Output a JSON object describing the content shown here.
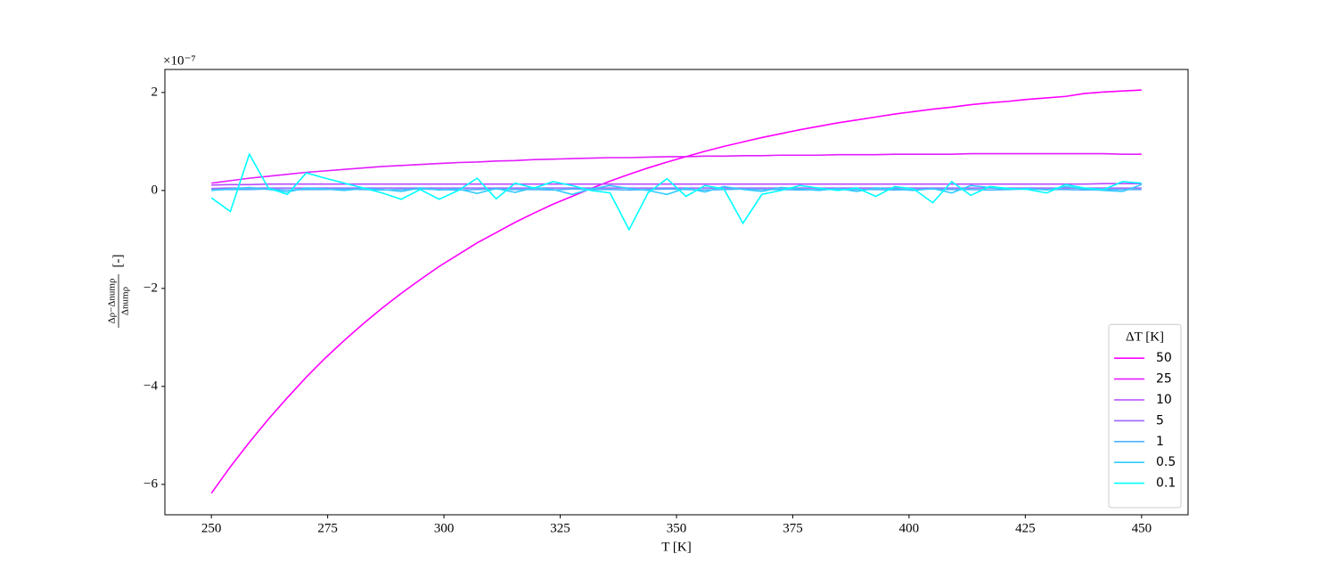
{
  "chart_data": {
    "type": "line",
    "xlabel": "T [K]",
    "ylabel_numerator": "Δρ−Δnumρ",
    "ylabel_denominator": "Δnumρ",
    "ylabel_unit": "[-]",
    "y_offset_label": "×10⁻⁷",
    "legend_title": "ΔT [K]",
    "legend_position": "lower right",
    "xlim": [
      240,
      460
    ],
    "ylim": [
      -6.62,
      2.47
    ],
    "xticks": [
      250,
      275,
      300,
      325,
      350,
      375,
      400,
      425,
      450
    ],
    "yticks": [
      {
        "value": -6,
        "label": "−6"
      },
      {
        "value": -4,
        "label": "−4"
      },
      {
        "value": -2,
        "label": "−2"
      },
      0,
      2
    ],
    "x": [
      250.0,
      254.08,
      258.16,
      262.24,
      266.33,
      270.41,
      274.49,
      278.57,
      282.65,
      286.73,
      290.82,
      294.9,
      298.98,
      303.06,
      307.14,
      311.22,
      315.31,
      319.39,
      323.47,
      327.55,
      331.63,
      335.71,
      339.8,
      343.88,
      347.96,
      352.04,
      356.12,
      360.2,
      364.29,
      368.37,
      372.45,
      376.53,
      380.61,
      384.69,
      388.78,
      392.86,
      396.94,
      401.02,
      405.1,
      409.18,
      413.27,
      417.35,
      421.43,
      425.51,
      429.59,
      433.67,
      437.76,
      441.84,
      445.92,
      450.0
    ],
    "series": [
      {
        "name": "50",
        "color": "#ff00ff",
        "values": [
          -6.18,
          -5.64,
          -5.14,
          -4.67,
          -4.23,
          -3.81,
          -3.42,
          -3.06,
          -2.72,
          -2.4,
          -2.1,
          -1.82,
          -1.55,
          -1.31,
          -1.07,
          -0.86,
          -0.65,
          -0.46,
          -0.28,
          -0.12,
          0.04,
          0.19,
          0.33,
          0.46,
          0.58,
          0.69,
          0.8,
          0.9,
          0.99,
          1.08,
          1.16,
          1.24,
          1.31,
          1.38,
          1.44,
          1.5,
          1.56,
          1.61,
          1.66,
          1.7,
          1.75,
          1.79,
          1.82,
          1.86,
          1.89,
          1.92,
          1.98,
          2.01,
          2.03,
          2.05
        ]
      },
      {
        "name": "25",
        "color": "#e31cff",
        "values": [
          0.15,
          0.2,
          0.25,
          0.29,
          0.33,
          0.37,
          0.4,
          0.43,
          0.46,
          0.49,
          0.51,
          0.53,
          0.55,
          0.57,
          0.58,
          0.6,
          0.61,
          0.63,
          0.64,
          0.65,
          0.66,
          0.67,
          0.67,
          0.68,
          0.69,
          0.69,
          0.7,
          0.7,
          0.71,
          0.71,
          0.72,
          0.72,
          0.72,
          0.73,
          0.73,
          0.73,
          0.74,
          0.74,
          0.74,
          0.74,
          0.75,
          0.75,
          0.75,
          0.75,
          0.75,
          0.75,
          0.75,
          0.75,
          0.74,
          0.74
        ]
      },
      {
        "name": "10",
        "color": "#b94aff",
        "values": [
          0.11,
          0.12,
          0.12,
          0.13,
          0.13,
          0.13,
          0.13,
          0.13,
          0.13,
          0.13,
          0.13,
          0.13,
          0.13,
          0.13,
          0.13,
          0.13,
          0.13,
          0.13,
          0.13,
          0.13,
          0.13,
          0.13,
          0.13,
          0.13,
          0.13,
          0.13,
          0.13,
          0.13,
          0.13,
          0.13,
          0.13,
          0.13,
          0.13,
          0.13,
          0.13,
          0.13,
          0.13,
          0.13,
          0.13,
          0.13,
          0.13,
          0.13,
          0.13,
          0.13,
          0.13,
          0.13,
          0.13,
          0.14,
          0.14,
          0.14
        ]
      },
      {
        "name": "5",
        "color": "#9966ff",
        "values": [
          0.04,
          0.05,
          0.05,
          0.05,
          0.05,
          0.05,
          0.05,
          0.05,
          0.05,
          0.05,
          0.05,
          0.05,
          0.05,
          0.05,
          0.05,
          0.05,
          0.05,
          0.05,
          0.05,
          0.05,
          0.05,
          0.05,
          0.05,
          0.05,
          0.05,
          0.05,
          0.05,
          0.05,
          0.05,
          0.05,
          0.05,
          0.05,
          0.05,
          0.05,
          0.05,
          0.05,
          0.05,
          0.05,
          0.05,
          0.05,
          0.05,
          0.05,
          0.05,
          0.05,
          0.05,
          0.05,
          0.05,
          0.05,
          0.05,
          0.05
        ]
      },
      {
        "name": "1",
        "color": "#4db2ff",
        "values": [
          0.01,
          0.02,
          0.02,
          0.03,
          0.01,
          0.02,
          0.02,
          0.03,
          0.02,
          0.01,
          0.02,
          0.03,
          0.02,
          0.01,
          0.02,
          0.03,
          0.02,
          0.02,
          0.01,
          0.03,
          0.02,
          0.02,
          0.01,
          0.02,
          0.03,
          0.02,
          0.01,
          0.02,
          0.03,
          0.02,
          0.02,
          0.01,
          0.02,
          0.03,
          0.02,
          0.02,
          0.01,
          0.02,
          0.03,
          0.02,
          0.02,
          0.01,
          0.02,
          0.03,
          0.02,
          0.02,
          0.01,
          0.02,
          0.02,
          0.02
        ]
      },
      {
        "name": "0.5",
        "color": "#33ccff",
        "values": [
          0.0,
          0.03,
          0.06,
          0.02,
          -0.03,
          0.05,
          0.03,
          0.0,
          0.04,
          0.02,
          -0.02,
          0.05,
          0.01,
          0.03,
          -0.06,
          0.04,
          -0.04,
          0.06,
          0.02,
          -0.08,
          0.03,
          0.1,
          0.04,
          0.0,
          -0.08,
          0.05,
          -0.03,
          0.08,
          0.02,
          -0.02,
          0.06,
          0.03,
          0.0,
          0.04,
          -0.02,
          0.05,
          0.03,
          0.0,
          0.04,
          -0.05,
          0.1,
          0.06,
          0.02,
          0.04,
          0.01,
          0.08,
          0.03,
          0.0,
          -0.02,
          0.12
        ]
      },
      {
        "name": "0.1",
        "color": "#00ffff",
        "values": [
          -0.15,
          -0.43,
          0.74,
          0.05,
          -0.08,
          0.36,
          0.25,
          0.15,
          0.05,
          -0.05,
          -0.18,
          0.02,
          -0.18,
          0.0,
          0.25,
          -0.17,
          0.15,
          0.05,
          0.18,
          0.1,
          0.0,
          -0.05,
          -0.8,
          -0.05,
          0.24,
          -0.12,
          0.1,
          0.03,
          -0.67,
          -0.08,
          0.0,
          0.1,
          0.05,
          0.0,
          0.05,
          -0.12,
          0.08,
          0.03,
          -0.25,
          0.18,
          -0.1,
          0.08,
          0.04,
          0.02,
          -0.05,
          0.12,
          0.05,
          0.02,
          0.18,
          0.15
        ]
      }
    ]
  }
}
